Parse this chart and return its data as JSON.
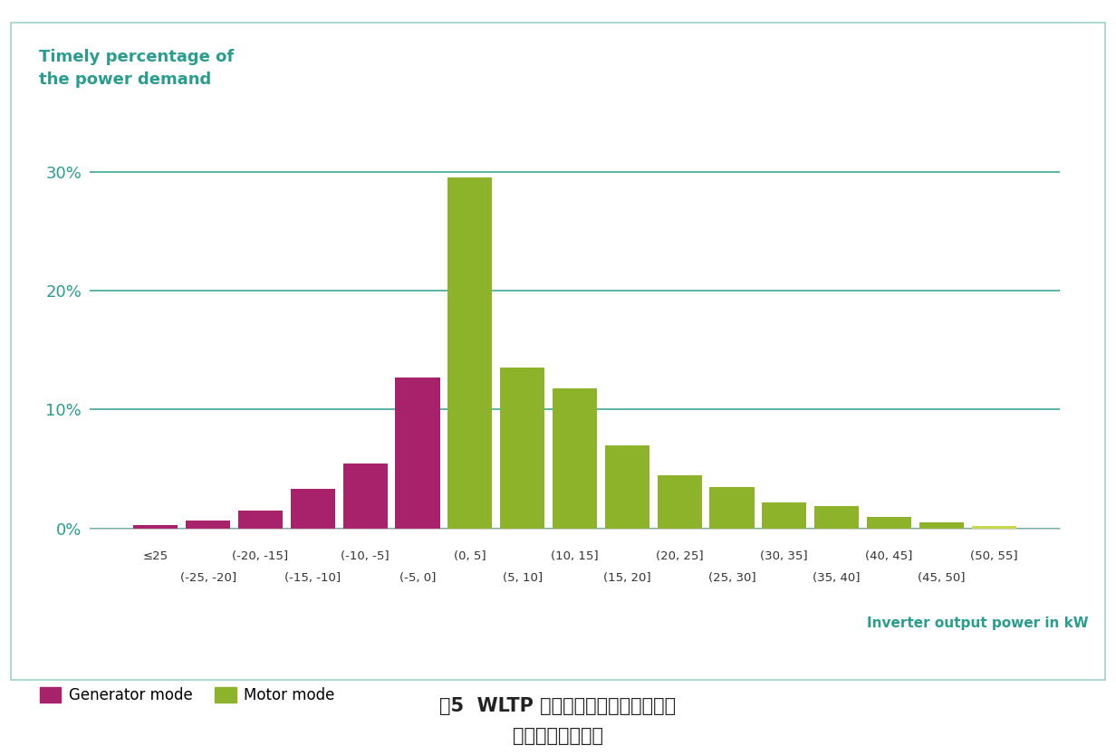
{
  "title_line1": "Timely percentage of",
  "title_line2": "the power demand",
  "title_color": "#2a9d8f",
  "xlabel_right": "Inverter output power in kW",
  "xlabel_right_color": "#2a9d8f",
  "caption_line1": "图5  WLTP 周期内牵引逆变器输出功率",
  "caption_line2": "随时间变化的情况",
  "background_color": "#ffffff",
  "plot_background": "#ffffff",
  "border_color": "#b0d8d4",
  "grid_color": "#2a9d8f",
  "bar_data": [
    {
      "label": "≤25",
      "value": 0.3,
      "color": "#a8216b"
    },
    {
      "label": "(-25,-20]",
      "value": 0.7,
      "color": "#a8216b"
    },
    {
      "label": "(-20,-15]",
      "value": 1.5,
      "color": "#a8216b"
    },
    {
      "label": "(-15,-10]",
      "value": 3.3,
      "color": "#a8216b"
    },
    {
      "label": "(-10,-5]",
      "value": 5.5,
      "color": "#a8216b"
    },
    {
      "label": "(-5,0]",
      "value": 12.7,
      "color": "#a8216b"
    },
    {
      "label": "(0,5]",
      "value": 29.5,
      "color": "#8db32a"
    },
    {
      "label": "(5,10]",
      "value": 13.5,
      "color": "#8db32a"
    },
    {
      "label": "(10,15]",
      "value": 11.8,
      "color": "#8db32a"
    },
    {
      "label": "(15,20]",
      "value": 7.0,
      "color": "#8db32a"
    },
    {
      "label": "(20,25]",
      "value": 4.5,
      "color": "#8db32a"
    },
    {
      "label": "(25,30]",
      "value": 3.5,
      "color": "#8db32a"
    },
    {
      "label": "(30,35]",
      "value": 2.2,
      "color": "#8db32a"
    },
    {
      "label": "(35,40]",
      "value": 1.9,
      "color": "#8db32a"
    },
    {
      "label": "(40,45]",
      "value": 1.0,
      "color": "#8db32a"
    },
    {
      "label": "(45,50]",
      "value": 0.5,
      "color": "#8db32a"
    },
    {
      "label": "(50,55]",
      "value": 0.2,
      "color": "#c8d84a"
    }
  ],
  "xtick_top_positions": [
    0,
    2,
    4,
    6,
    8,
    10,
    12,
    14,
    16
  ],
  "xtick_top_labels": [
    "≤25",
    "(-20, -15]",
    "(-10, -5]",
    "(0, 5]",
    "(10, 15]",
    "(20, 25]",
    "(30, 35]",
    "(40, 45]",
    "(50, 55]"
  ],
  "xtick_bottom_positions": [
    1,
    3,
    5,
    7,
    9,
    11,
    13,
    15
  ],
  "xtick_bottom_labels": [
    "(-25, -20]",
    "(-15, -10]",
    "(-5, 0]",
    "(5, 10]",
    "(15, 20]",
    "(25, 30]",
    "(35, 40]",
    "(45, 50]"
  ],
  "ytick_vals": [
    0,
    10,
    20,
    30
  ],
  "ylim": [
    0,
    33
  ],
  "bar_width": 0.85,
  "legend_generator_color": "#a8216b",
  "legend_generator_label": "Generator mode",
  "legend_motor_color": "#8db32a",
  "legend_motor_label": "Motor mode"
}
